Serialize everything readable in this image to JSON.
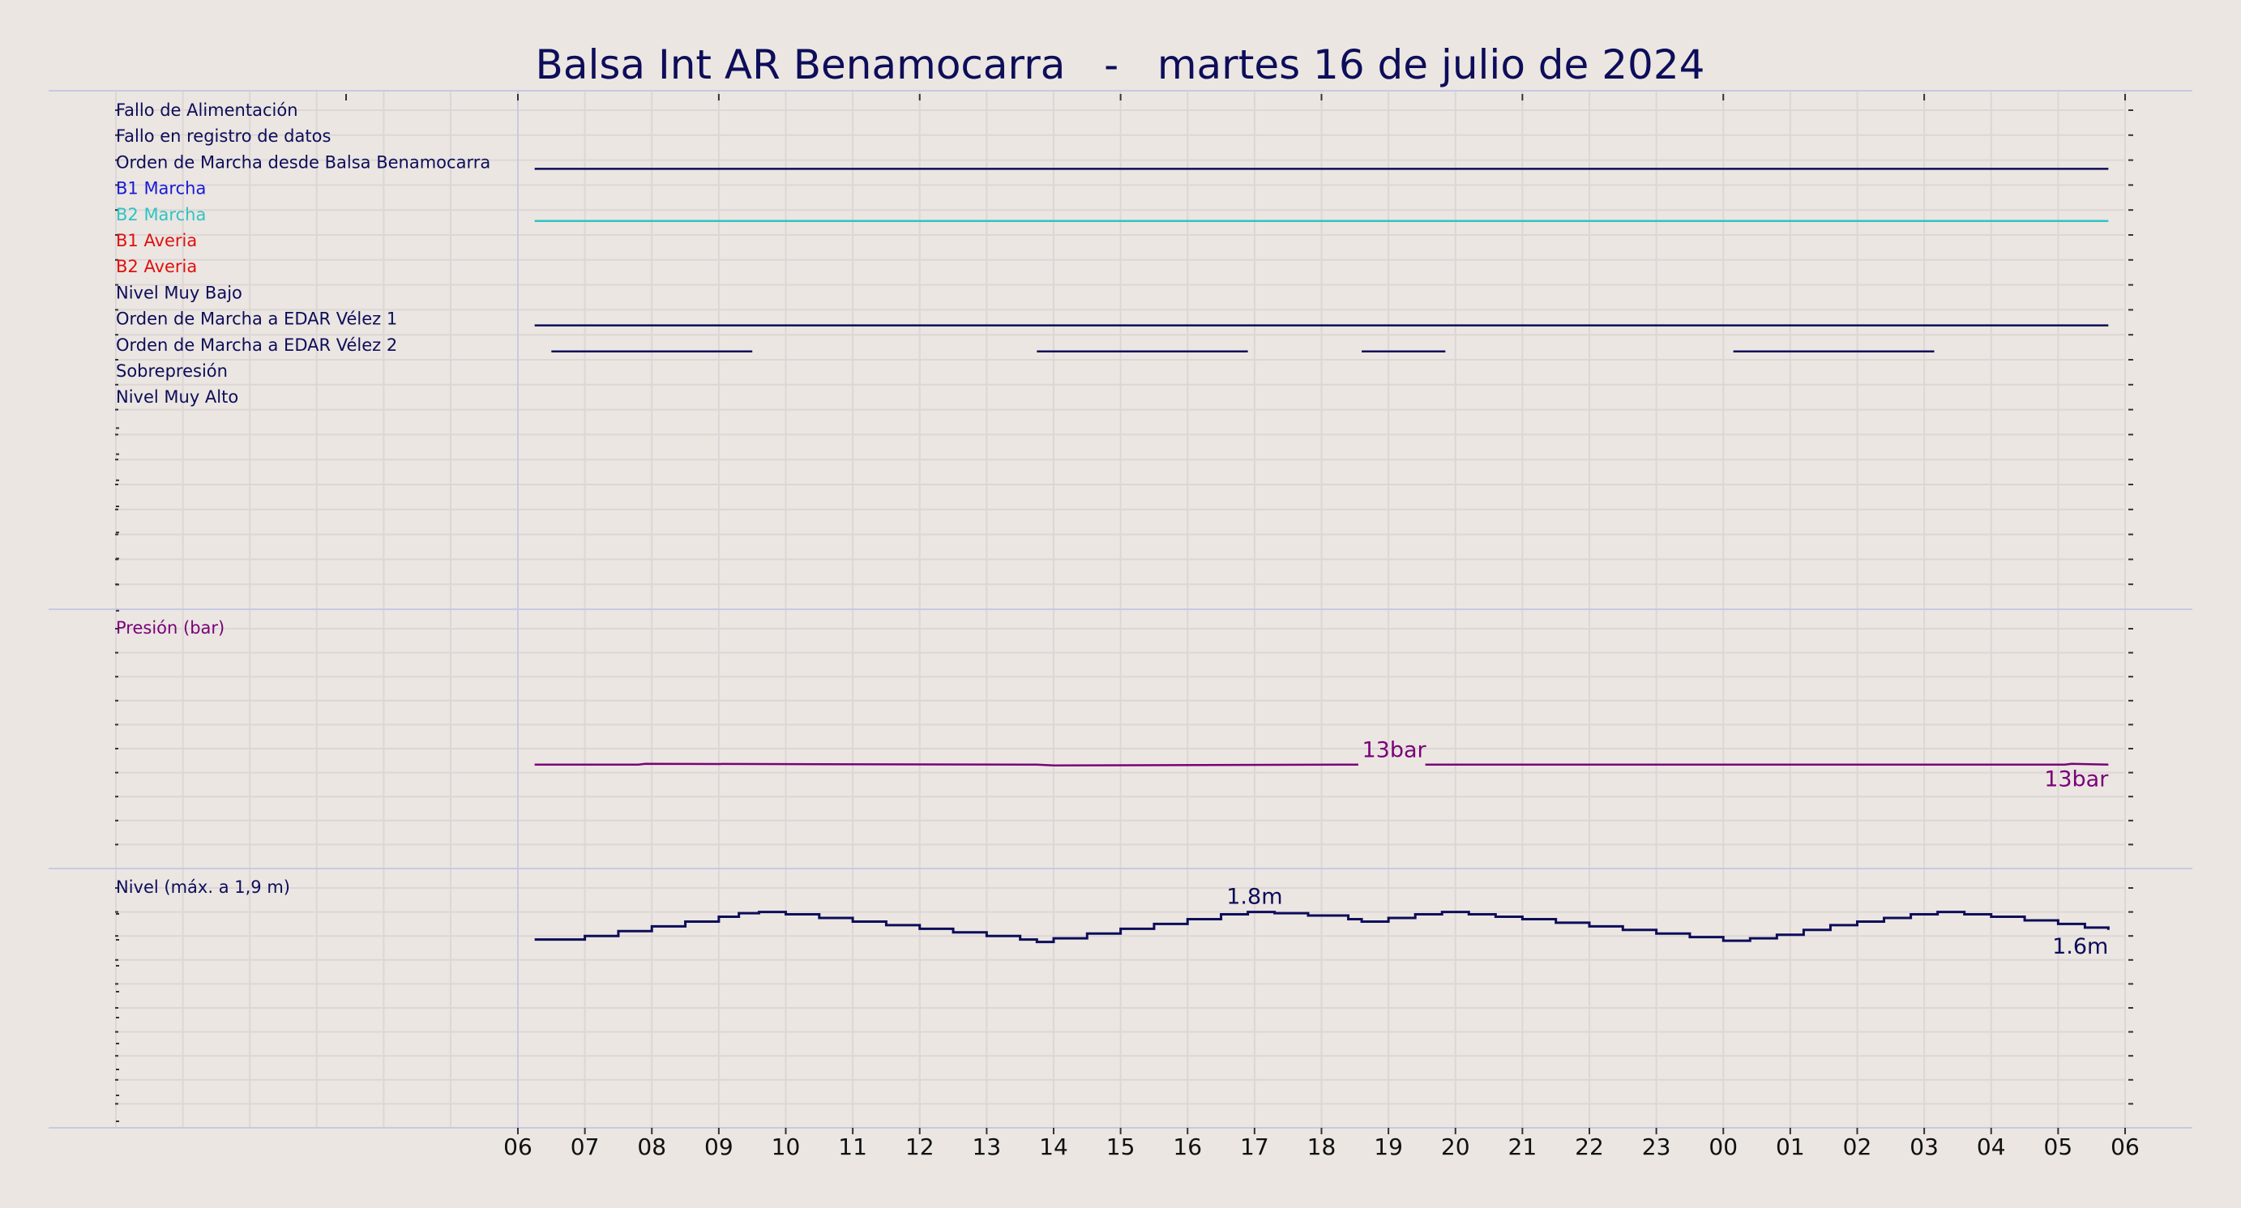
{
  "chart_data": {
    "type": "line",
    "title": "Balsa Int AR Benamocarra   -   martes 16 de julio de 2024",
    "x_tick_labels": [
      "06",
      "07",
      "08",
      "09",
      "10",
      "11",
      "12",
      "13",
      "14",
      "15",
      "16",
      "17",
      "18",
      "19",
      "20",
      "21",
      "22",
      "23",
      "00",
      "01",
      "02",
      "03",
      "04",
      "05",
      "06"
    ],
    "grid": true,
    "colors": {
      "background": "#ebe6e1",
      "navy": "#0d0d5a",
      "cyan": "#2ec4c4",
      "blue": "#1a1ad6",
      "red": "#e01010",
      "purple": "#7a007a",
      "grid": "#dcd6d6"
    },
    "digital_panel": {
      "rows": [
        {
          "label": "Fallo de Alimentación",
          "color": "#0d0d5a",
          "segments": []
        },
        {
          "label": "Fallo en registro de datos",
          "color": "#0d0d5a",
          "segments": []
        },
        {
          "label": "Orden de Marcha desde Balsa Benamocarra",
          "color": "#0d0d5a",
          "segments": [
            [
              6.25,
              29.75
            ]
          ]
        },
        {
          "label": "B1 Marcha",
          "color": "#1a1ad6",
          "segments": []
        },
        {
          "label": "B2 Marcha",
          "color": "#2ec4c4",
          "segments": [
            [
              6.25,
              29.75
            ]
          ]
        },
        {
          "label": "B1 Averia",
          "color": "#e01010",
          "segments": []
        },
        {
          "label": "B2 Averia",
          "color": "#e01010",
          "segments": []
        },
        {
          "label": "Nivel Muy Bajo",
          "color": "#0d0d5a",
          "segments": []
        },
        {
          "label": "Orden de Marcha a EDAR Vélez 1",
          "color": "#0d0d5a",
          "segments": [
            [
              6.25,
              29.75
            ]
          ]
        },
        {
          "label": "Orden de Marcha a EDAR Vélez 2",
          "color": "#0d0d5a",
          "segments": [
            [
              6.5,
              9.5
            ],
            [
              13.75,
              16.9
            ],
            [
              18.6,
              19.85
            ],
            [
              24.15,
              27.15
            ]
          ]
        },
        {
          "label": "Sobrepresión",
          "color": "#0d0d5a",
          "segments": []
        },
        {
          "label": "Nivel Muy Alto",
          "color": "#0d0d5a",
          "segments": []
        }
      ]
    },
    "pressure_panel": {
      "label": "Presión (bar)",
      "color": "#7a007a",
      "unit": "bar",
      "ylim": [
        0,
        30
      ],
      "series": [
        {
          "name": "Presión (bar)",
          "x": [
            6.25,
            7.8,
            7.9,
            13.75,
            14.0,
            18.55,
            19.55,
            29.1,
            29.2,
            29.75
          ],
          "y": [
            13,
            13,
            13.1,
            13,
            12.9,
            13,
            13,
            13,
            13.1,
            13
          ],
          "gap_after_index": 5
        }
      ],
      "annotations": [
        {
          "text": "13bar",
          "x": 18.6,
          "y": 13,
          "placement": "above"
        },
        {
          "text": "13bar",
          "x": 29.75,
          "y": 13,
          "placement": "below-right"
        }
      ]
    },
    "level_panel": {
      "label": "Nivel (máx. a 1,9 m)",
      "color": "#0d0d5a",
      "unit": "m",
      "ylim": [
        0,
        2.0
      ],
      "series": [
        {
          "name": "Nivel (máx. a 1,9 m)",
          "type": "step",
          "x": [
            6.25,
            6.5,
            7.0,
            7.5,
            8.0,
            8.5,
            9.0,
            9.3,
            9.6,
            10.0,
            10.5,
            11.0,
            11.5,
            12.0,
            12.5,
            13.0,
            13.5,
            13.75,
            14.0,
            14.5,
            15.0,
            15.5,
            16.0,
            16.5,
            16.9,
            17.3,
            17.8,
            18.4,
            18.6,
            19.0,
            19.4,
            19.8,
            20.2,
            20.6,
            21.0,
            21.5,
            22.0,
            22.5,
            23.0,
            23.5,
            24.0,
            24.15,
            24.4,
            24.8,
            25.2,
            25.6,
            26.0,
            26.4,
            26.8,
            27.2,
            27.6,
            28.0,
            28.5,
            29.0,
            29.4,
            29.75
          ],
          "y": [
            1.57,
            1.57,
            1.6,
            1.64,
            1.68,
            1.72,
            1.76,
            1.79,
            1.8,
            1.78,
            1.75,
            1.72,
            1.69,
            1.66,
            1.63,
            1.6,
            1.57,
            1.55,
            1.58,
            1.62,
            1.66,
            1.7,
            1.74,
            1.78,
            1.8,
            1.79,
            1.77,
            1.74,
            1.72,
            1.75,
            1.78,
            1.8,
            1.78,
            1.76,
            1.74,
            1.71,
            1.68,
            1.65,
            1.62,
            1.59,
            1.56,
            1.56,
            1.58,
            1.61,
            1.65,
            1.69,
            1.72,
            1.75,
            1.78,
            1.8,
            1.78,
            1.76,
            1.73,
            1.7,
            1.67,
            1.65
          ]
        }
      ],
      "annotations": [
        {
          "text": "1.8m",
          "x": 17.0,
          "y": 1.8,
          "placement": "above"
        },
        {
          "text": "1.6m",
          "x": 29.75,
          "y": 1.65,
          "placement": "below-right"
        }
      ]
    }
  }
}
